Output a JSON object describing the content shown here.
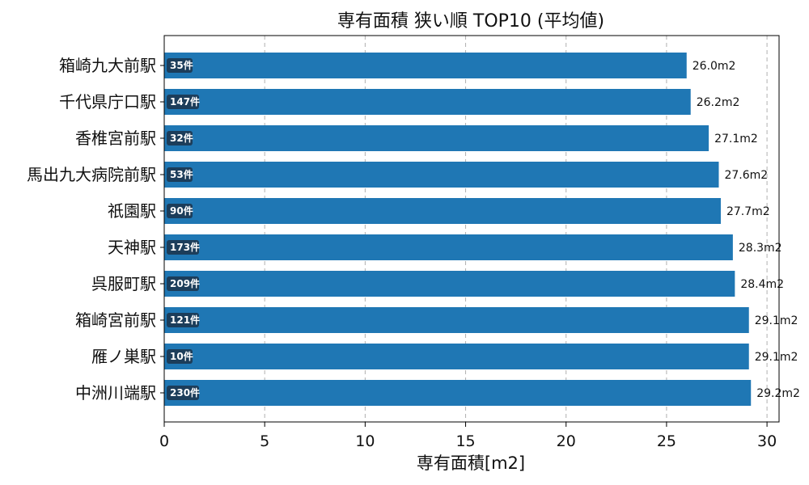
{
  "chart_data": {
    "type": "bar",
    "orientation": "horizontal",
    "title": "専有面積 狭い順 TOP10 (平均値)",
    "xlabel": "専有面積[m2]",
    "ylabel": "",
    "xlim": [
      0,
      30.6
    ],
    "xticks": [
      "0",
      "5",
      "10",
      "15",
      "20",
      "25",
      "30"
    ],
    "grid": "x",
    "bar_color": "#1f77b4",
    "badge_color": "#1c3d5a",
    "categories": [
      "箱崎九大前駅",
      "千代県庁口駅",
      "香椎宮前駅",
      "馬出九大病院前駅",
      "祇園駅",
      "天神駅",
      "呉服町駅",
      "箱崎宮前駅",
      "雁ノ巣駅",
      "中洲川端駅"
    ],
    "values": [
      26.0,
      26.2,
      27.1,
      27.6,
      27.7,
      28.3,
      28.4,
      29.1,
      29.1,
      29.2
    ],
    "value_labels": [
      "26.0m2",
      "26.2m2",
      "27.1m2",
      "27.6m2",
      "27.7m2",
      "28.3m2",
      "28.4m2",
      "29.1m2",
      "29.1m2",
      "29.2m2"
    ],
    "count_labels": [
      "35件",
      "147件",
      "32件",
      "53件",
      "90件",
      "173件",
      "209件",
      "121件",
      "10件",
      "230件"
    ]
  }
}
